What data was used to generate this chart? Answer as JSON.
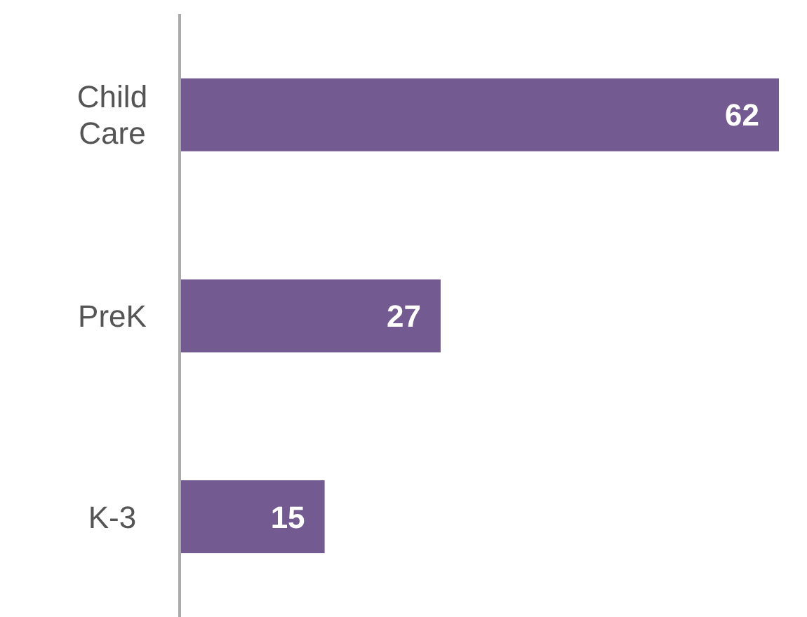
{
  "chart_data": {
    "type": "bar",
    "orientation": "horizontal",
    "categories": [
      "Child Care",
      "PreK",
      "K-3"
    ],
    "values": [
      62,
      27,
      15
    ],
    "color": "#735a91",
    "data_labels": true,
    "grid": false,
    "legend": false
  }
}
